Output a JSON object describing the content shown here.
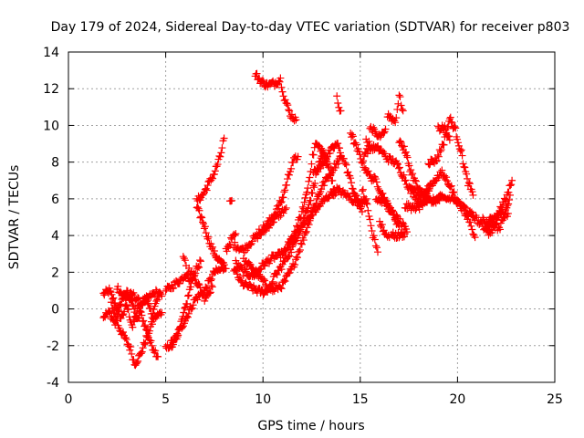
{
  "chart_data": {
    "type": "scatter",
    "title": "Day 179 of 2024, Sidereal Day-to-day VTEC variation (SDTVAR) for receiver p803",
    "xlabel": "GPS time / hours",
    "ylabel": "SDTVAR / TECUs",
    "xlim": [
      0,
      25
    ],
    "ylim": [
      -4,
      14
    ],
    "xticks": [
      0,
      5,
      10,
      15,
      20,
      25
    ],
    "yticks": [
      -4,
      -2,
      0,
      2,
      4,
      6,
      8,
      10,
      12,
      14
    ],
    "xtick_labels": [
      "0",
      "5",
      "10",
      "15",
      "20",
      "25"
    ],
    "ytick_labels": [
      "-4",
      "-2",
      "0",
      "2",
      "4",
      "6",
      "8",
      "10",
      "12",
      "14"
    ],
    "grid": true,
    "legend": "none",
    "marker": "plus",
    "marker_color": "#ff0000",
    "series": [
      {
        "tracks": [
          [
            [
              1.8,
              0.8
            ],
            [
              2.1,
              1.0
            ],
            [
              2.4,
              0.3
            ],
            [
              2.7,
              -0.5
            ],
            [
              3.0,
              0.2
            ],
            [
              3.3,
              -1.0
            ],
            [
              3.6,
              0.1
            ],
            [
              3.9,
              -0.8
            ],
            [
              4.2,
              -1.8
            ],
            [
              4.6,
              -2.6
            ]
          ],
          [
            [
              1.8,
              -0.4
            ],
            [
              2.1,
              -0.2
            ],
            [
              2.4,
              -0.8
            ],
            [
              2.7,
              0.4
            ],
            [
              3.0,
              0.9
            ],
            [
              3.3,
              0.2
            ],
            [
              3.6,
              -0.6
            ],
            [
              3.9,
              0.6
            ],
            [
              4.3,
              -0.3
            ],
            [
              4.7,
              0.9
            ]
          ],
          [
            [
              2.2,
              0.3
            ],
            [
              2.6,
              -1.0
            ],
            [
              2.9,
              -1.6
            ],
            [
              3.2,
              -2.2
            ],
            [
              3.4,
              -3.0
            ],
            [
              3.7,
              -2.5
            ],
            [
              4.0,
              -1.6
            ],
            [
              4.4,
              -0.5
            ],
            [
              4.8,
              -0.2
            ]
          ],
          [
            [
              2.5,
              1.2
            ],
            [
              2.9,
              0.6
            ],
            [
              3.3,
              0.8
            ],
            [
              3.7,
              0.3
            ],
            [
              4.1,
              0.6
            ],
            [
              4.5,
              0.9
            ],
            [
              4.8,
              0.7
            ]
          ],
          [
            [
              5.0,
              -2.2
            ],
            [
              5.5,
              -1.6
            ],
            [
              6.0,
              -0.6
            ],
            [
              6.5,
              0.5
            ],
            [
              7.0,
              1.0
            ],
            [
              7.5,
              2.0
            ],
            [
              8.0,
              2.2
            ]
          ],
          [
            [
              5.3,
              -2.0
            ],
            [
              5.7,
              -1.2
            ],
            [
              6.1,
              0.4
            ],
            [
              6.4,
              1.8
            ],
            [
              6.8,
              2.6
            ]
          ],
          [
            [
              5.0,
              1.0
            ],
            [
              5.4,
              1.3
            ],
            [
              5.8,
              1.6
            ],
            [
              6.2,
              2.1
            ],
            [
              6.6,
              1.5
            ],
            [
              7.0,
              0.6
            ],
            [
              7.4,
              1.2
            ]
          ],
          [
            [
              5.9,
              3.0
            ],
            [
              6.1,
              2.0
            ],
            [
              6.3,
              1.2
            ]
          ],
          [
            [
              6.6,
              5.9
            ],
            [
              6.9,
              6.2
            ],
            [
              7.2,
              6.8
            ],
            [
              7.5,
              7.4
            ],
            [
              7.8,
              8.3
            ],
            [
              8.0,
              9.3
            ]
          ],
          [
            [
              6.6,
              5.5
            ],
            [
              6.9,
              4.8
            ],
            [
              7.2,
              3.8
            ],
            [
              7.5,
              3.0
            ],
            [
              7.8,
              2.6
            ],
            [
              8.1,
              2.2
            ]
          ],
          [
            [
              8.1,
              3.2
            ],
            [
              8.4,
              3.8
            ],
            [
              8.6,
              4.1
            ]
          ],
          [
            [
              8.3,
              5.8
            ],
            [
              8.4,
              5.9
            ]
          ],
          [
            [
              8.5,
              3.5
            ],
            [
              9.0,
              3.2
            ],
            [
              9.5,
              3.8
            ],
            [
              10.0,
              4.2
            ],
            [
              10.5,
              4.8
            ],
            [
              11.0,
              5.3
            ],
            [
              11.2,
              5.5
            ]
          ],
          [
            [
              8.6,
              2.5
            ],
            [
              9.0,
              2.0
            ],
            [
              9.5,
              1.8
            ],
            [
              10.0,
              2.4
            ],
            [
              10.5,
              2.8
            ],
            [
              11.0,
              3.0
            ]
          ],
          [
            [
              8.5,
              2.2
            ],
            [
              8.9,
              1.4
            ],
            [
              9.3,
              1.2
            ],
            [
              9.7,
              1.0
            ],
            [
              10.1,
              0.9
            ],
            [
              10.5,
              1.4
            ]
          ],
          [
            [
              9.0,
              2.6
            ],
            [
              9.5,
              2.2
            ],
            [
              10.0,
              1.5
            ],
            [
              10.5,
              1.0
            ],
            [
              11.0,
              1.3
            ],
            [
              11.5,
              2.2
            ],
            [
              12.0,
              3.6
            ],
            [
              12.5,
              5.2
            ],
            [
              13.0,
              6.6
            ],
            [
              13.5,
              7.5
            ],
            [
              14.0,
              8.3
            ]
          ],
          [
            [
              9.6,
              12.8
            ],
            [
              9.9,
              12.4
            ],
            [
              10.2,
              12.2
            ],
            [
              10.6,
              12.3
            ],
            [
              10.9,
              12.5
            ],
            [
              11.1,
              11.5
            ],
            [
              11.4,
              10.6
            ],
            [
              11.7,
              10.3
            ]
          ],
          [
            [
              9.8,
              4.2
            ],
            [
              10.2,
              4.6
            ],
            [
              10.6,
              5.2
            ],
            [
              11.0,
              6.0
            ],
            [
              11.3,
              7.2
            ],
            [
              11.5,
              8.0
            ],
            [
              11.8,
              8.3
            ]
          ],
          [
            [
              10.5,
              1.6
            ],
            [
              11.0,
              2.4
            ],
            [
              11.5,
              3.3
            ],
            [
              12.0,
              4.6
            ],
            [
              12.5,
              6.2
            ],
            [
              12.8,
              7.6
            ],
            [
              13.1,
              8.4
            ],
            [
              13.4,
              7.7
            ],
            [
              13.7,
              6.2
            ]
          ],
          [
            [
              11.0,
              2.9
            ],
            [
              11.5,
              3.8
            ],
            [
              12.0,
              5.2
            ],
            [
              12.3,
              6.6
            ],
            [
              12.5,
              8.0
            ],
            [
              12.7,
              9.0
            ],
            [
              13.0,
              8.7
            ],
            [
              13.3,
              8.0
            ]
          ],
          [
            [
              11.3,
              3.6
            ],
            [
              11.8,
              4.2
            ],
            [
              12.3,
              4.9
            ],
            [
              12.8,
              5.5
            ],
            [
              13.3,
              6.1
            ],
            [
              13.8,
              6.5
            ],
            [
              14.3,
              6.2
            ],
            [
              14.8,
              5.8
            ],
            [
              15.3,
              6.0
            ]
          ],
          [
            [
              12.6,
              7.4
            ],
            [
              13.0,
              7.8
            ],
            [
              13.4,
              8.5
            ],
            [
              13.8,
              9.0
            ],
            [
              14.2,
              8.0
            ],
            [
              14.5,
              7.0
            ],
            [
              14.8,
              6.0
            ],
            [
              15.1,
              5.3
            ]
          ],
          [
            [
              13.8,
              11.5
            ],
            [
              13.9,
              11.0
            ],
            [
              14.0,
              10.8
            ]
          ],
          [
            [
              14.5,
              9.6
            ],
            [
              14.8,
              8.8
            ],
            [
              15.2,
              7.8
            ],
            [
              15.5,
              7.2
            ],
            [
              15.8,
              7.0
            ],
            [
              16.2,
              6.1
            ],
            [
              16.6,
              5.3
            ],
            [
              17.0,
              4.5
            ]
          ],
          [
            [
              15.1,
              6.5
            ],
            [
              15.4,
              5.5
            ],
            [
              15.6,
              4.2
            ],
            [
              15.8,
              3.5
            ],
            [
              15.9,
              3.1
            ]
          ],
          [
            [
              15.2,
              8.5
            ],
            [
              15.6,
              8.8
            ],
            [
              16.0,
              8.7
            ],
            [
              16.4,
              8.2
            ],
            [
              16.8,
              8.0
            ],
            [
              17.2,
              7.3
            ],
            [
              17.6,
              6.4
            ],
            [
              18.0,
              6.0
            ]
          ],
          [
            [
              15.3,
              9.2
            ],
            [
              15.5,
              8.9
            ]
          ],
          [
            [
              15.5,
              10.0
            ],
            [
              15.9,
              9.4
            ],
            [
              16.3,
              9.8
            ]
          ],
          [
            [
              15.8,
              6.0
            ],
            [
              16.2,
              5.9
            ],
            [
              16.6,
              5.3
            ],
            [
              17.0,
              4.8
            ],
            [
              17.4,
              4.2
            ]
          ],
          [
            [
              16.0,
              4.7
            ],
            [
              16.3,
              4.1
            ],
            [
              16.5,
              3.9
            ]
          ],
          [
            [
              16.4,
              10.6
            ],
            [
              16.8,
              10.2
            ],
            [
              17.0,
              11.6
            ],
            [
              17.2,
              10.8
            ]
          ],
          [
            [
              16.6,
              4.0
            ],
            [
              17.0,
              4.0
            ],
            [
              17.3,
              4.1
            ]
          ],
          [
            [
              17.0,
              9.2
            ],
            [
              17.3,
              8.6
            ],
            [
              17.6,
              7.5
            ],
            [
              18.0,
              6.5
            ],
            [
              18.4,
              6.0
            ],
            [
              18.8,
              5.8
            ],
            [
              19.2,
              6.2
            ]
          ],
          [
            [
              17.3,
              5.6
            ],
            [
              17.8,
              5.5
            ],
            [
              18.3,
              5.9
            ],
            [
              18.8,
              5.9
            ],
            [
              19.3,
              6.0
            ],
            [
              19.8,
              6.0
            ],
            [
              20.2,
              5.6
            ]
          ],
          [
            [
              17.6,
              6.8
            ],
            [
              18.0,
              6.2
            ],
            [
              18.4,
              6.4
            ],
            [
              18.8,
              7.0
            ],
            [
              19.2,
              7.4
            ],
            [
              19.6,
              6.8
            ],
            [
              20.0,
              5.8
            ]
          ],
          [
            [
              18.0,
              5.4
            ],
            [
              18.3,
              6.0
            ],
            [
              18.6,
              6.8
            ]
          ],
          [
            [
              18.5,
              8.0
            ],
            [
              18.9,
              8.1
            ],
            [
              19.3,
              9.1
            ],
            [
              19.6,
              10.4
            ],
            [
              19.9,
              9.7
            ],
            [
              20.2,
              8.5
            ],
            [
              20.5,
              7.0
            ],
            [
              20.8,
              6.2
            ]
          ],
          [
            [
              19.0,
              9.8
            ],
            [
              19.3,
              9.9
            ],
            [
              19.6,
              9.2
            ]
          ],
          [
            [
              20.3,
              5.6
            ],
            [
              20.6,
              5.2
            ],
            [
              20.9,
              5.0
            ],
            [
              21.2,
              4.6
            ],
            [
              21.4,
              4.4
            ],
            [
              21.7,
              4.7
            ],
            [
              22.0,
              5.0
            ],
            [
              22.3,
              5.3
            ],
            [
              22.6,
              5.2
            ]
          ],
          [
            [
              20.0,
              5.9
            ],
            [
              20.3,
              5.4
            ],
            [
              20.6,
              4.9
            ],
            [
              20.8,
              4.2
            ],
            [
              20.9,
              3.9
            ]
          ],
          [
            [
              21.3,
              4.9
            ],
            [
              21.6,
              4.0
            ],
            [
              21.9,
              4.4
            ],
            [
              22.2,
              5.5
            ],
            [
              22.5,
              6.0
            ],
            [
              22.8,
              7.0
            ]
          ],
          [
            [
              21.5,
              4.6
            ],
            [
              21.8,
              5.1
            ],
            [
              22.1,
              4.3
            ],
            [
              22.4,
              5.0
            ],
            [
              22.7,
              6.2
            ]
          ]
        ]
      }
    ]
  }
}
